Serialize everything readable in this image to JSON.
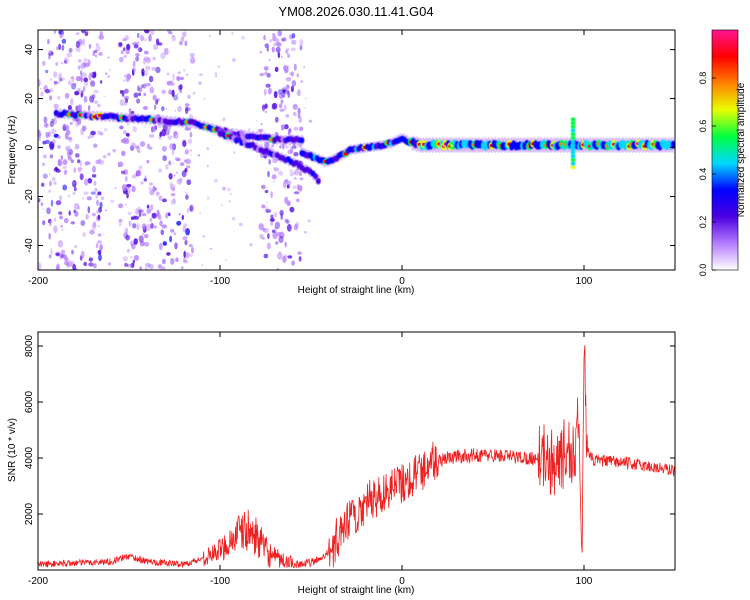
{
  "figure_title": "YM08.2026.030.11.41.G04",
  "chart_data": [
    {
      "type": "heatmap",
      "xlabel": "Height of straight line (km)",
      "ylabel": "Frequency (Hz)",
      "xlim": [
        -200,
        150
      ],
      "ylim": [
        -50,
        48
      ],
      "x_ticks": [
        -200,
        -100,
        0,
        100
      ],
      "y_ticks": [
        -40,
        -20,
        0,
        20,
        40
      ],
      "colorbar": {
        "label": "Normalized spectral amplitude",
        "range": [
          0,
          1
        ],
        "ticks": [
          "0.0",
          "0.2",
          "0.4",
          "0.6",
          "0.8"
        ],
        "colors": [
          "#ffffff",
          "#b47cff",
          "#4b00e0",
          "#0000ff",
          "#00d8ff",
          "#00ff40",
          "#e8ff00",
          "#ff8000",
          "#ff0000",
          "#ff1493"
        ]
      },
      "ridges": [
        {
          "x": [
            -190,
            -170,
            -150,
            -130,
            -115,
            -105,
            -95,
            -85,
            -75,
            -65,
            -55
          ],
          "y": [
            14,
            13,
            12,
            11,
            10,
            8,
            6,
            5,
            4,
            3,
            3
          ]
        },
        {
          "x": [
            -100,
            -90,
            -80,
            -70,
            -60,
            -50,
            -45
          ],
          "y": [
            6,
            3,
            0,
            -3,
            -6,
            -10,
            -14
          ]
        },
        {
          "x": [
            -55,
            -48,
            -42,
            -38,
            -33,
            -28,
            -20,
            -10,
            -5,
            0,
            5,
            10,
            40,
            80,
            90,
            95,
            100,
            150
          ],
          "y": [
            -2,
            -4,
            -6,
            -5,
            -3,
            -1,
            0,
            1,
            2,
            4,
            2,
            1,
            1,
            1,
            1,
            1,
            1,
            1
          ]
        }
      ],
      "noise_bands": [
        [
          -200,
          -165
        ],
        [
          -155,
          -115
        ],
        [
          -78,
          -55
        ]
      ]
    },
    {
      "type": "line",
      "xlabel": "Height of straight line (km)",
      "ylabel": "SNR (10 * v/v)",
      "xlim": [
        -200,
        150
      ],
      "ylim": [
        0,
        8500
      ],
      "x_ticks": [
        -200,
        -100,
        0,
        100
      ],
      "y_ticks": [
        2000,
        4000,
        6000,
        8000
      ],
      "color": "#ee2020",
      "series": [
        {
          "x": [
            -200,
            -180,
            -160,
            -150,
            -140,
            -120,
            -110,
            -100,
            -95,
            -90,
            -85,
            -80,
            -75,
            -70,
            -60,
            -50,
            -45,
            -40,
            -35,
            -30,
            -25,
            -20,
            -15,
            -10,
            -5,
            0,
            5,
            10,
            15,
            20,
            25,
            30,
            40,
            50,
            60,
            70,
            78,
            80,
            85,
            90,
            95,
            97,
            98,
            99,
            100,
            102,
            105,
            110,
            120,
            130,
            140,
            150
          ],
          "y": [
            200,
            250,
            300,
            500,
            300,
            200,
            400,
            700,
            1000,
            1300,
            1400,
            1200,
            700,
            400,
            200,
            250,
            400,
            700,
            1100,
            1600,
            2000,
            2400,
            2500,
            2800,
            3000,
            3100,
            3300,
            3600,
            3800,
            3900,
            4000,
            4050,
            4100,
            4100,
            4050,
            4000,
            4000,
            3800,
            4000,
            4100,
            4200,
            6000,
            2000,
            500,
            8400,
            4200,
            3900,
            3900,
            3850,
            3750,
            3650,
            3550
          ]
        }
      ]
    }
  ]
}
